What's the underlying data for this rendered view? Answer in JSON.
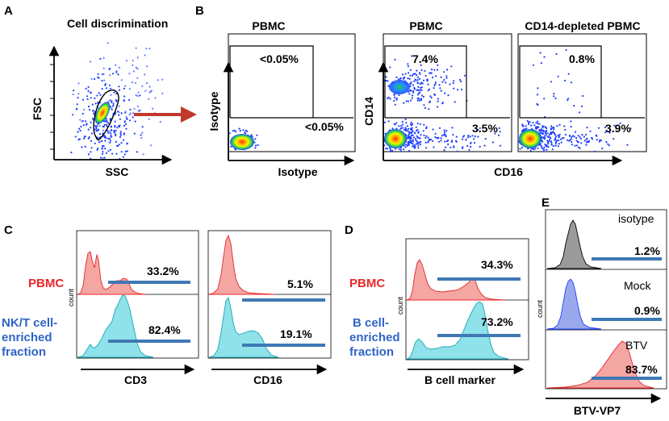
{
  "panels": {
    "A": {
      "letter": "A",
      "title": "Cell discrimination",
      "xlabel": "SSC",
      "ylabel": "FSC"
    },
    "B": {
      "letter": "B",
      "plot1": {
        "title": "PBMC",
        "xlabel": "Isotype",
        "ylabel": "Isotype",
        "gate_upper": "<0.05%",
        "gate_lower": "<0.05%"
      },
      "plot2": {
        "title": "PBMC",
        "ylabel": "CD14",
        "gate_upper": "7.4%",
        "gate_lower": "3.5%"
      },
      "plot3": {
        "title": "CD14-depleted PBMC",
        "gate_upper": "0.8%",
        "gate_lower": "3.9%"
      },
      "shared_xlabel": "CD16"
    },
    "C": {
      "letter": "C",
      "row1_label": "PBMC",
      "row2_label_line1": "NK/T cell-",
      "row2_label_line2": "enriched",
      "row2_label_line3": "fraction",
      "count_label": "count",
      "plot1": {
        "xlabel": "CD3",
        "top_pct": "33.2%",
        "bottom_pct": "82.4%"
      },
      "plot2": {
        "xlabel": "CD16",
        "top_pct": "5.1%",
        "bottom_pct": "19.1%"
      }
    },
    "D": {
      "letter": "D",
      "row1_label": "PBMC",
      "row2_label_line1": "B cell-",
      "row2_label_line2": "enriched",
      "row2_label_line3": "fraction",
      "count_label": "count",
      "xlabel": "B cell marker",
      "top_pct": "34.3%",
      "bottom_pct": "73.2%"
    },
    "E": {
      "letter": "E",
      "count_label": "count",
      "xlabel": "BTV-VP7",
      "rows": [
        {
          "label": "isotype",
          "pct": "1.2%"
        },
        {
          "label": "Mock",
          "pct": "0.9%"
        },
        {
          "label": "BTV",
          "pct": "83.7%"
        }
      ]
    }
  },
  "colors": {
    "pbmc_red": "#e8262a",
    "fraction_blue": "#2f64c8",
    "gate_bar": "#3f78b5",
    "hist_red": "#f4a6a3",
    "hist_cyan": "#8fe2ea",
    "hist_gray": "#9a9a9a",
    "hist_blue": "#9aa8ee",
    "dot_blue": "#1f3fff",
    "arrow": "#c0392b"
  }
}
